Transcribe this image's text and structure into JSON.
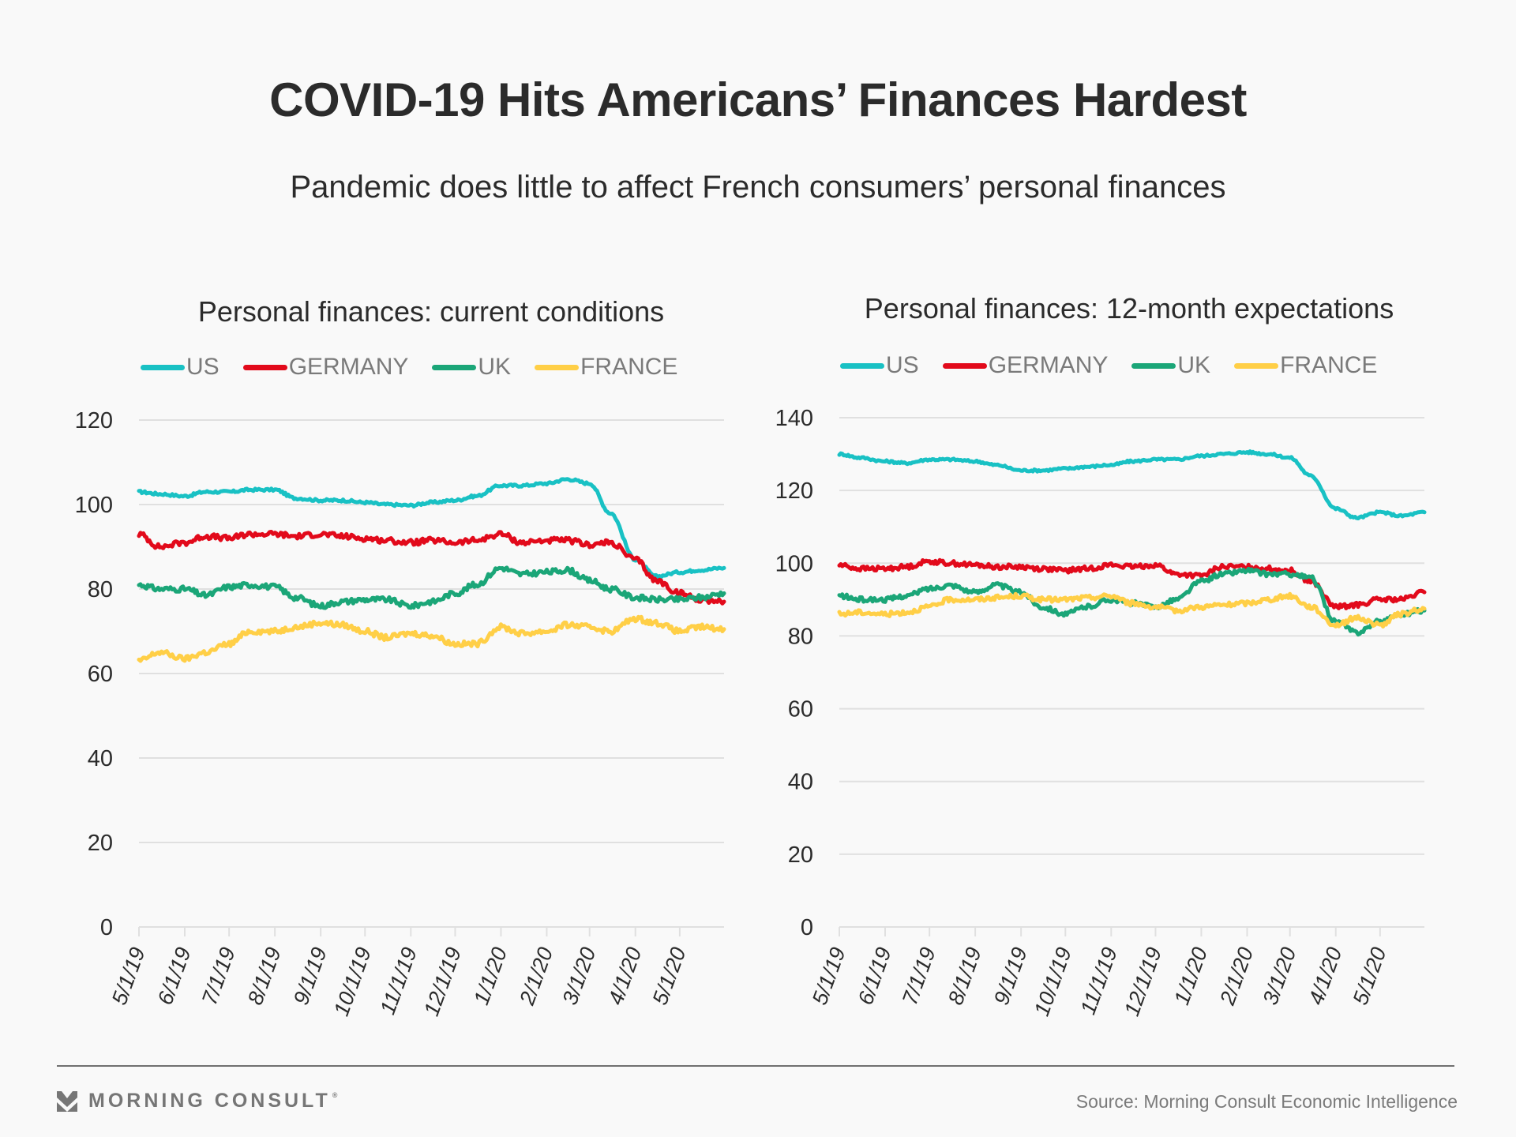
{
  "header": {
    "title": "COVID-19 Hits Americans’ Finances Hardest",
    "subtitle": "Pandemic does little to affect French consumers’ personal finances"
  },
  "footer": {
    "logo_text": "MORNING CONSULT",
    "logo_mark": "®",
    "source": "Source: Morning Consult Economic Intelligence"
  },
  "colors": {
    "US": "#19c1c4",
    "GERMANY": "#e20a1b",
    "UK": "#1ba678",
    "FRANCE": "#ffcf47",
    "grid": "#e0e0e0",
    "axis_text": "#2b2b2b",
    "legend_text": "#7a7a7a"
  },
  "chart_data": [
    {
      "type": "line",
      "title": "Personal finances: current conditions",
      "xlabel": "",
      "ylabel": "",
      "ylim": [
        0,
        120
      ],
      "yticks": [
        "0",
        "20",
        "40",
        "60",
        "80",
        "100",
        "120"
      ],
      "xticks": [
        "5/1/19",
        "6/1/19",
        "7/1/19",
        "8/1/19",
        "9/1/19",
        "10/1/19",
        "11/1/19",
        "12/1/19",
        "1/1/20",
        "2/1/20",
        "3/1/20",
        "4/1/20",
        "5/1/20"
      ],
      "x_range": [
        "5/1/19",
        "5/31/20"
      ],
      "grid": true,
      "legend": "top",
      "x": [
        "5/1/19",
        "5/15/19",
        "6/1/19",
        "6/15/19",
        "7/1/19",
        "7/15/19",
        "8/1/19",
        "8/15/19",
        "9/1/19",
        "9/15/19",
        "10/1/19",
        "10/15/19",
        "11/1/19",
        "11/15/19",
        "12/1/19",
        "12/15/19",
        "1/1/20",
        "1/15/20",
        "2/1/20",
        "2/15/20",
        "3/1/20",
        "3/15/20",
        "4/1/20",
        "4/15/20",
        "5/1/20",
        "5/15/20",
        "5/31/20"
      ],
      "series": [
        {
          "name": "US",
          "values": [
            103,
            102.5,
            102,
            103,
            103,
            103.5,
            103.5,
            101.5,
            101,
            101,
            100.5,
            100,
            99.8,
            100.5,
            101,
            102,
            104.5,
            104.5,
            105,
            106,
            105,
            98,
            87,
            83,
            84,
            84.5,
            85
          ]
        },
        {
          "name": "GERMANY",
          "values": [
            93,
            90,
            91,
            92.5,
            92,
            93,
            93,
            92.5,
            93,
            92.5,
            92,
            91.5,
            91,
            91.5,
            91,
            91.5,
            93,
            91,
            91.5,
            91.5,
            90.5,
            91,
            87,
            82,
            79,
            77.5,
            77
          ]
        },
        {
          "name": "UK",
          "values": [
            81,
            80,
            80,
            78.5,
            80.5,
            81,
            80.5,
            78,
            76,
            77,
            77.5,
            77.5,
            76,
            77,
            79,
            81,
            85,
            83.5,
            84,
            84.5,
            82,
            80,
            78,
            77.5,
            77.5,
            78,
            79
          ]
        },
        {
          "name": "FRANCE",
          "values": [
            63,
            65,
            63.5,
            65,
            67,
            70,
            70,
            71,
            72,
            71.5,
            70,
            68.5,
            69.5,
            69,
            67,
            67,
            71,
            69.5,
            70,
            71.5,
            71,
            70,
            73,
            72,
            70,
            71,
            70.5
          ]
        }
      ]
    },
    {
      "type": "line",
      "title": "Personal finances: 12-month expectations",
      "xlabel": "",
      "ylabel": "",
      "ylim": [
        0,
        140
      ],
      "yticks": [
        "0",
        "20",
        "40",
        "60",
        "80",
        "100",
        "120",
        "140"
      ],
      "xticks": [
        "5/1/19",
        "6/1/19",
        "7/1/19",
        "8/1/19",
        "9/1/19",
        "10/1/19",
        "11/1/19",
        "12/1/19",
        "1/1/20",
        "2/1/20",
        "3/1/20",
        "4/1/20",
        "5/1/20"
      ],
      "x_range": [
        "5/1/19",
        "5/31/20"
      ],
      "grid": true,
      "legend": "top",
      "x": [
        "5/1/19",
        "5/15/19",
        "6/1/19",
        "6/15/19",
        "7/1/19",
        "7/15/19",
        "8/1/19",
        "8/15/19",
        "9/1/19",
        "9/15/19",
        "10/1/19",
        "10/15/19",
        "11/1/19",
        "11/15/19",
        "12/1/19",
        "12/15/19",
        "1/1/20",
        "1/15/20",
        "2/1/20",
        "2/15/20",
        "3/1/20",
        "3/15/20",
        "4/1/20",
        "4/15/20",
        "5/1/20",
        "5/15/20",
        "5/31/20"
      ],
      "series": [
        {
          "name": "US",
          "values": [
            130,
            129,
            128,
            127.5,
            128.5,
            128.5,
            128,
            127,
            125.5,
            125.5,
            126,
            126.5,
            127,
            128,
            128.5,
            128.5,
            129.5,
            130,
            130.5,
            130,
            129,
            124,
            115,
            112.5,
            114,
            113,
            114
          ]
        },
        {
          "name": "GERMANY",
          "values": [
            99.5,
            98.5,
            98.5,
            99,
            100.5,
            100,
            99.5,
            99,
            99,
            98.5,
            98,
            98.5,
            99.5,
            99,
            99.5,
            97,
            96.5,
            99,
            99,
            98.5,
            98,
            95,
            88,
            88.5,
            90,
            90,
            92
          ]
        },
        {
          "name": "UK",
          "values": [
            91,
            90,
            90,
            91,
            93,
            94,
            92,
            94,
            92,
            88,
            86,
            88,
            90,
            89,
            88,
            90,
            95,
            97,
            98,
            97,
            97,
            96,
            84,
            81,
            84,
            86,
            87
          ]
        },
        {
          "name": "FRANCE",
          "values": [
            86,
            86.5,
            86,
            86.5,
            88,
            90,
            90,
            90.5,
            91,
            90,
            90,
            90.5,
            91,
            89,
            88,
            87,
            88,
            88.5,
            89,
            90,
            91,
            88,
            83,
            85,
            83,
            86,
            87.5
          ]
        }
      ]
    }
  ]
}
